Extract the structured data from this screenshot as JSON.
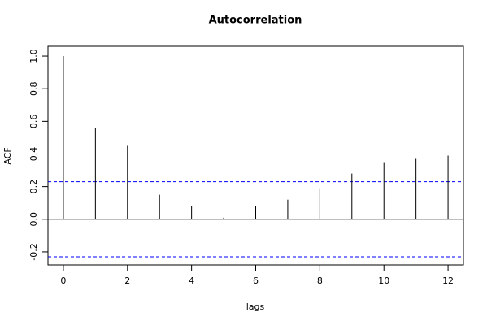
{
  "chart_data": {
    "type": "bar",
    "title": "Autocorrelation",
    "x_label": "lags",
    "y_label": "ACF",
    "x": [
      0,
      1,
      2,
      3,
      4,
      5,
      6,
      7,
      8,
      9,
      10,
      11,
      12
    ],
    "values": [
      1.0,
      0.56,
      0.45,
      0.15,
      0.08,
      0.01,
      0.08,
      0.12,
      0.19,
      0.28,
      0.35,
      0.37,
      0.39
    ],
    "color": "#000000",
    "xlim": [
      -0.48,
      12.48
    ],
    "ylim": [
      -0.28,
      1.06
    ],
    "xticks": [
      0,
      2,
      4,
      6,
      8,
      10,
      12
    ],
    "yticks": [
      -0.2,
      {
        "value": 0,
        "label": "0.0"
      },
      0.2,
      0.4,
      0.6,
      0.8,
      {
        "value": 1,
        "label": "1.0"
      }
    ],
    "confidence_bounds": [
      0.23,
      -0.23
    ],
    "confidence_color": "#0000ff"
  }
}
